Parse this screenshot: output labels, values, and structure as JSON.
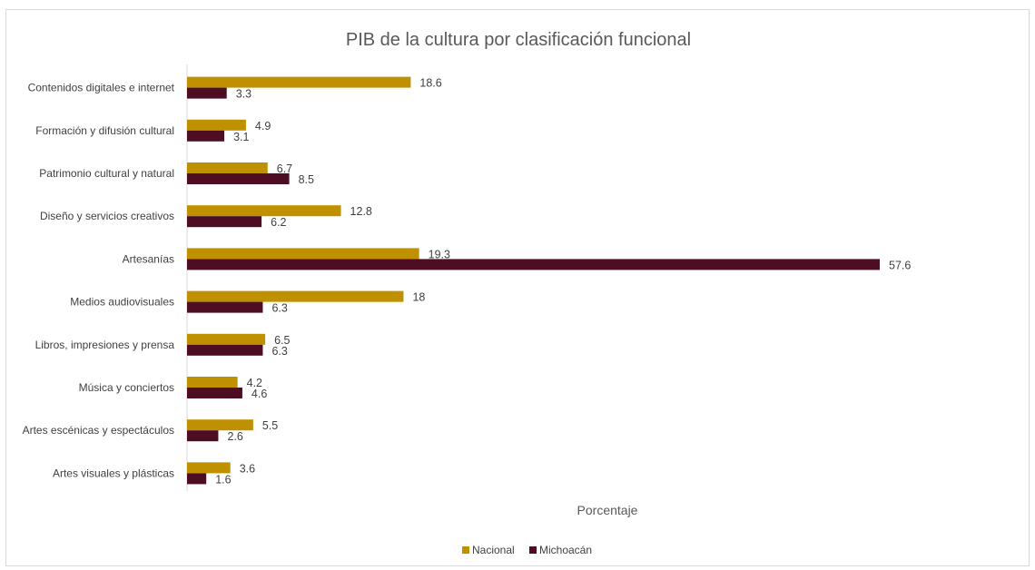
{
  "chart_data": {
    "type": "bar",
    "orientation": "horizontal",
    "title": "PIB de la cultura por clasificación funcional",
    "xlabel": "Porcentaje",
    "ylabel": "",
    "xlim": [
      0,
      60
    ],
    "grid": false,
    "legend_position": "bottom",
    "categories": [
      "Contenidos digitales e internet",
      "Formación y difusión cultural",
      "Patrimonio cultural y natural",
      "Diseño y servicios creativos",
      "Artesanías",
      "Medios audiovisuales",
      "Libros, impresiones y prensa",
      "Música y conciertos",
      "Artes escénicas y espectáculos",
      "Artes visuales y plásticas"
    ],
    "series": [
      {
        "name": "Nacional",
        "color": "#BF9000",
        "values": [
          18.6,
          4.9,
          6.7,
          12.8,
          19.3,
          18,
          6.5,
          4.2,
          5.5,
          3.6
        ]
      },
      {
        "name": "Michoacán",
        "color": "#4D0E23",
        "values": [
          3.3,
          3.1,
          8.5,
          6.2,
          57.6,
          6.3,
          6.3,
          4.6,
          2.6,
          1.6
        ]
      }
    ]
  }
}
